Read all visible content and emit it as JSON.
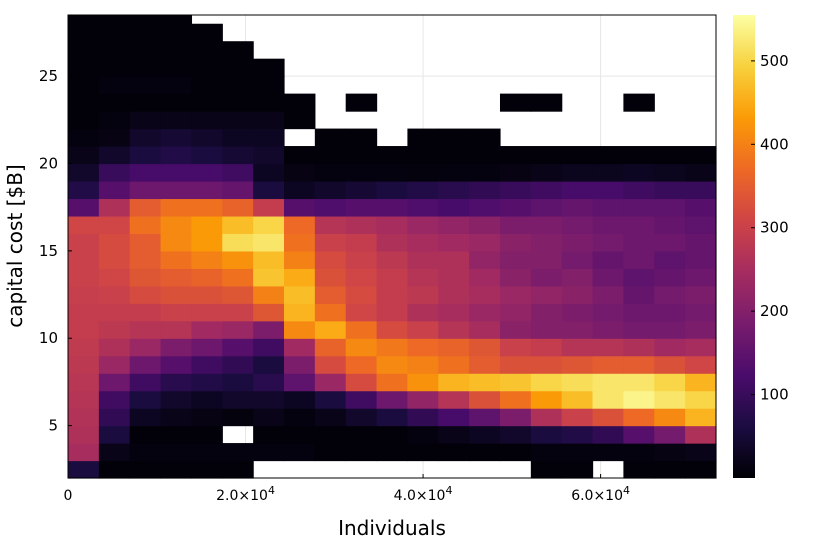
{
  "chart_data": {
    "type": "heatmap",
    "title": "",
    "xlabel": "Individuals",
    "ylabel": "capital cost [$B]",
    "xlim": [
      0,
      73000
    ],
    "ylim": [
      2,
      28.5
    ],
    "x_ticks": [
      {
        "value": 0,
        "mant": "0",
        "exp": ""
      },
      {
        "value": 20000,
        "mant": "2.0×10",
        "exp": "4"
      },
      {
        "value": 40000,
        "mant": "4.0×10",
        "exp": "4"
      },
      {
        "value": 60000,
        "mant": "6.0×10",
        "exp": "4"
      }
    ],
    "y_ticks": [
      5,
      10,
      15,
      20,
      25
    ],
    "colorbar": {
      "range": [
        0,
        555
      ],
      "ticks": [
        100,
        200,
        300,
        400,
        500
      ],
      "colormap": "inferno",
      "colors": [
        "#000004",
        "#1b0c41",
        "#4a0c6b",
        "#781c6d",
        "#a52c60",
        "#cf4446",
        "#ed6925",
        "#fb9b06",
        "#f7d13d",
        "#fcffa4"
      ]
    },
    "x_bins": {
      "start": 0,
      "step": 3476,
      "count": 21
    },
    "y_bins": {
      "start": 2,
      "step": 1.0,
      "count": 27
    },
    "grid": "on",
    "cells": [
      [
        60,
        5,
        5,
        5,
        5,
        5,
        null,
        null,
        null,
        null,
        null,
        null,
        null,
        null,
        null,
        5,
        5,
        null,
        5,
        5,
        5
      ],
      [
        250,
        20,
        10,
        10,
        10,
        10,
        10,
        10,
        5,
        5,
        5,
        5,
        5,
        5,
        5,
        10,
        10,
        10,
        10,
        15,
        20
      ],
      [
        260,
        60,
        5,
        5,
        5,
        null,
        5,
        5,
        5,
        5,
        5,
        10,
        20,
        30,
        40,
        60,
        70,
        90,
        140,
        180,
        260
      ],
      [
        265,
        90,
        30,
        20,
        15,
        8,
        20,
        10,
        20,
        40,
        60,
        90,
        120,
        150,
        190,
        260,
        300,
        330,
        370,
        410,
        460
      ],
      [
        270,
        110,
        60,
        40,
        30,
        40,
        40,
        30,
        60,
        110,
        170,
        220,
        270,
        330,
        380,
        430,
        470,
        520,
        540,
        520,
        500
      ],
      [
        275,
        170,
        110,
        80,
        70,
        60,
        80,
        150,
        230,
        320,
        380,
        420,
        460,
        470,
        480,
        500,
        510,
        520,
        520,
        500,
        460
      ],
      [
        280,
        230,
        170,
        140,
        110,
        90,
        60,
        190,
        320,
        370,
        410,
        400,
        380,
        350,
        330,
        330,
        340,
        350,
        350,
        330,
        310
      ],
      [
        285,
        260,
        230,
        190,
        170,
        140,
        110,
        240,
        360,
        410,
        390,
        370,
        360,
        340,
        300,
        290,
        270,
        270,
        260,
        240,
        250
      ],
      [
        290,
        280,
        270,
        270,
        240,
        230,
        190,
        410,
        450,
        380,
        320,
        300,
        270,
        250,
        210,
        200,
        200,
        190,
        180,
        180,
        190
      ],
      [
        290,
        290,
        290,
        300,
        300,
        300,
        340,
        460,
        380,
        310,
        290,
        260,
        250,
        230,
        220,
        200,
        190,
        180,
        170,
        170,
        180
      ],
      [
        295,
        300,
        320,
        330,
        330,
        340,
        400,
        470,
        350,
        320,
        290,
        280,
        260,
        250,
        230,
        220,
        210,
        190,
        160,
        180,
        190
      ],
      [
        300,
        310,
        340,
        350,
        360,
        380,
        480,
        450,
        330,
        310,
        290,
        270,
        260,
        240,
        210,
        190,
        200,
        170,
        150,
        160,
        170
      ],
      [
        300,
        320,
        350,
        380,
        400,
        420,
        470,
        400,
        320,
        300,
        280,
        260,
        260,
        220,
        200,
        200,
        180,
        160,
        170,
        150,
        160
      ],
      [
        300,
        320,
        350,
        410,
        430,
        510,
        520,
        380,
        300,
        290,
        260,
        250,
        240,
        230,
        210,
        200,
        190,
        180,
        170,
        170,
        160
      ],
      [
        310,
        310,
        380,
        410,
        430,
        470,
        500,
        370,
        270,
        260,
        250,
        230,
        220,
        210,
        190,
        190,
        180,
        170,
        170,
        160,
        150
      ],
      [
        140,
        260,
        350,
        380,
        380,
        360,
        290,
        140,
        130,
        140,
        140,
        130,
        120,
        130,
        140,
        150,
        160,
        150,
        150,
        150,
        140
      ],
      [
        70,
        140,
        170,
        170,
        170,
        160,
        60,
        30,
        40,
        50,
        60,
        70,
        80,
        90,
        100,
        110,
        120,
        120,
        110,
        100,
        100
      ],
      [
        40,
        100,
        120,
        120,
        120,
        110,
        30,
        15,
        10,
        10,
        10,
        8,
        10,
        10,
        15,
        20,
        25,
        25,
        30,
        25,
        20
      ],
      [
        20,
        40,
        60,
        70,
        60,
        50,
        40,
        5,
        5,
        5,
        5,
        5,
        5,
        5,
        5,
        5,
        5,
        5,
        5,
        5,
        5
      ],
      [
        10,
        15,
        40,
        50,
        40,
        30,
        30,
        null,
        5,
        5,
        null,
        5,
        5,
        5,
        null,
        null,
        null,
        null,
        null,
        null,
        null
      ],
      [
        5,
        10,
        20,
        20,
        20,
        20,
        20,
        5,
        null,
        null,
        null,
        null,
        null,
        null,
        null,
        null,
        null,
        null,
        null,
        null,
        null
      ],
      [
        5,
        5,
        5,
        5,
        5,
        5,
        5,
        5,
        null,
        5,
        null,
        null,
        null,
        null,
        5,
        5,
        null,
        null,
        5,
        null,
        null
      ],
      [
        5,
        10,
        10,
        10,
        5,
        5,
        5,
        null,
        null,
        null,
        null,
        null,
        null,
        null,
        null,
        null,
        null,
        null,
        null,
        null,
        null
      ],
      [
        5,
        5,
        5,
        5,
        5,
        5,
        5,
        null,
        null,
        null,
        null,
        null,
        null,
        null,
        null,
        null,
        null,
        null,
        null,
        null,
        null
      ],
      [
        5,
        5,
        5,
        5,
        5,
        5,
        null,
        null,
        null,
        null,
        null,
        null,
        null,
        null,
        null,
        null,
        null,
        null,
        null,
        null,
        null
      ],
      [
        5,
        5,
        5,
        5,
        5,
        null,
        null,
        null,
        null,
        null,
        null,
        null,
        null,
        null,
        null,
        null,
        null,
        null,
        null,
        null,
        null
      ],
      [
        5,
        5,
        5,
        5,
        null,
        null,
        null,
        null,
        null,
        null,
        null,
        null,
        null,
        null,
        null,
        null,
        null,
        null,
        null,
        null,
        null
      ]
    ]
  }
}
